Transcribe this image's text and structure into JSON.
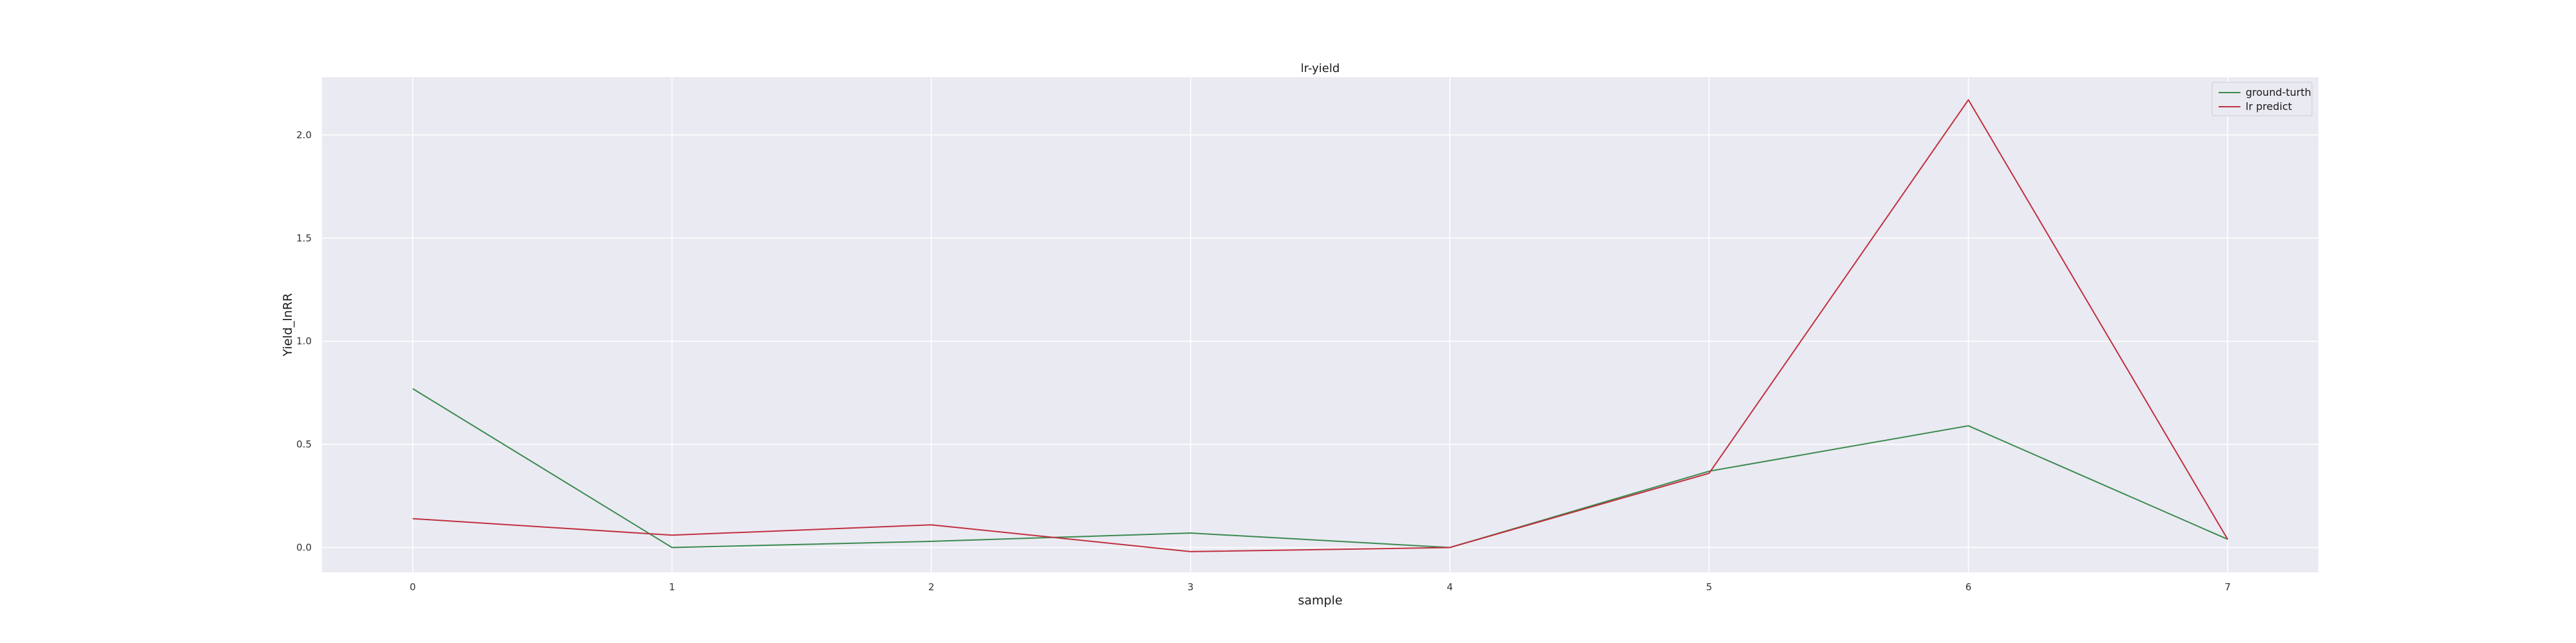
{
  "chart_data": {
    "type": "line",
    "title": "lr-yield",
    "xlabel": "sample",
    "ylabel": "Yield_lnRR",
    "x": [
      0,
      1,
      2,
      3,
      4,
      5,
      6,
      7
    ],
    "xticks": [
      "0",
      "1",
      "2",
      "3",
      "4",
      "5",
      "6",
      "7"
    ],
    "yticks": [
      "0.0",
      "0.5",
      "1.0",
      "1.5",
      "2.0"
    ],
    "ytick_values": [
      0.0,
      0.5,
      1.0,
      1.5,
      2.0
    ],
    "xlim": [
      -0.35,
      7.35
    ],
    "ylim": [
      -0.12,
      2.28
    ],
    "grid": true,
    "legend_position": "top-right",
    "background_color": "#eaeaf2",
    "series": [
      {
        "name": "ground-turth",
        "color": "#3a8a4e",
        "values": [
          0.77,
          0.0,
          0.03,
          0.07,
          0.0,
          0.37,
          0.59,
          0.04
        ]
      },
      {
        "name": "lr predict",
        "color": "#c0303f",
        "values": [
          0.14,
          0.06,
          0.11,
          -0.02,
          0.0,
          0.36,
          2.17,
          0.04
        ]
      }
    ]
  }
}
